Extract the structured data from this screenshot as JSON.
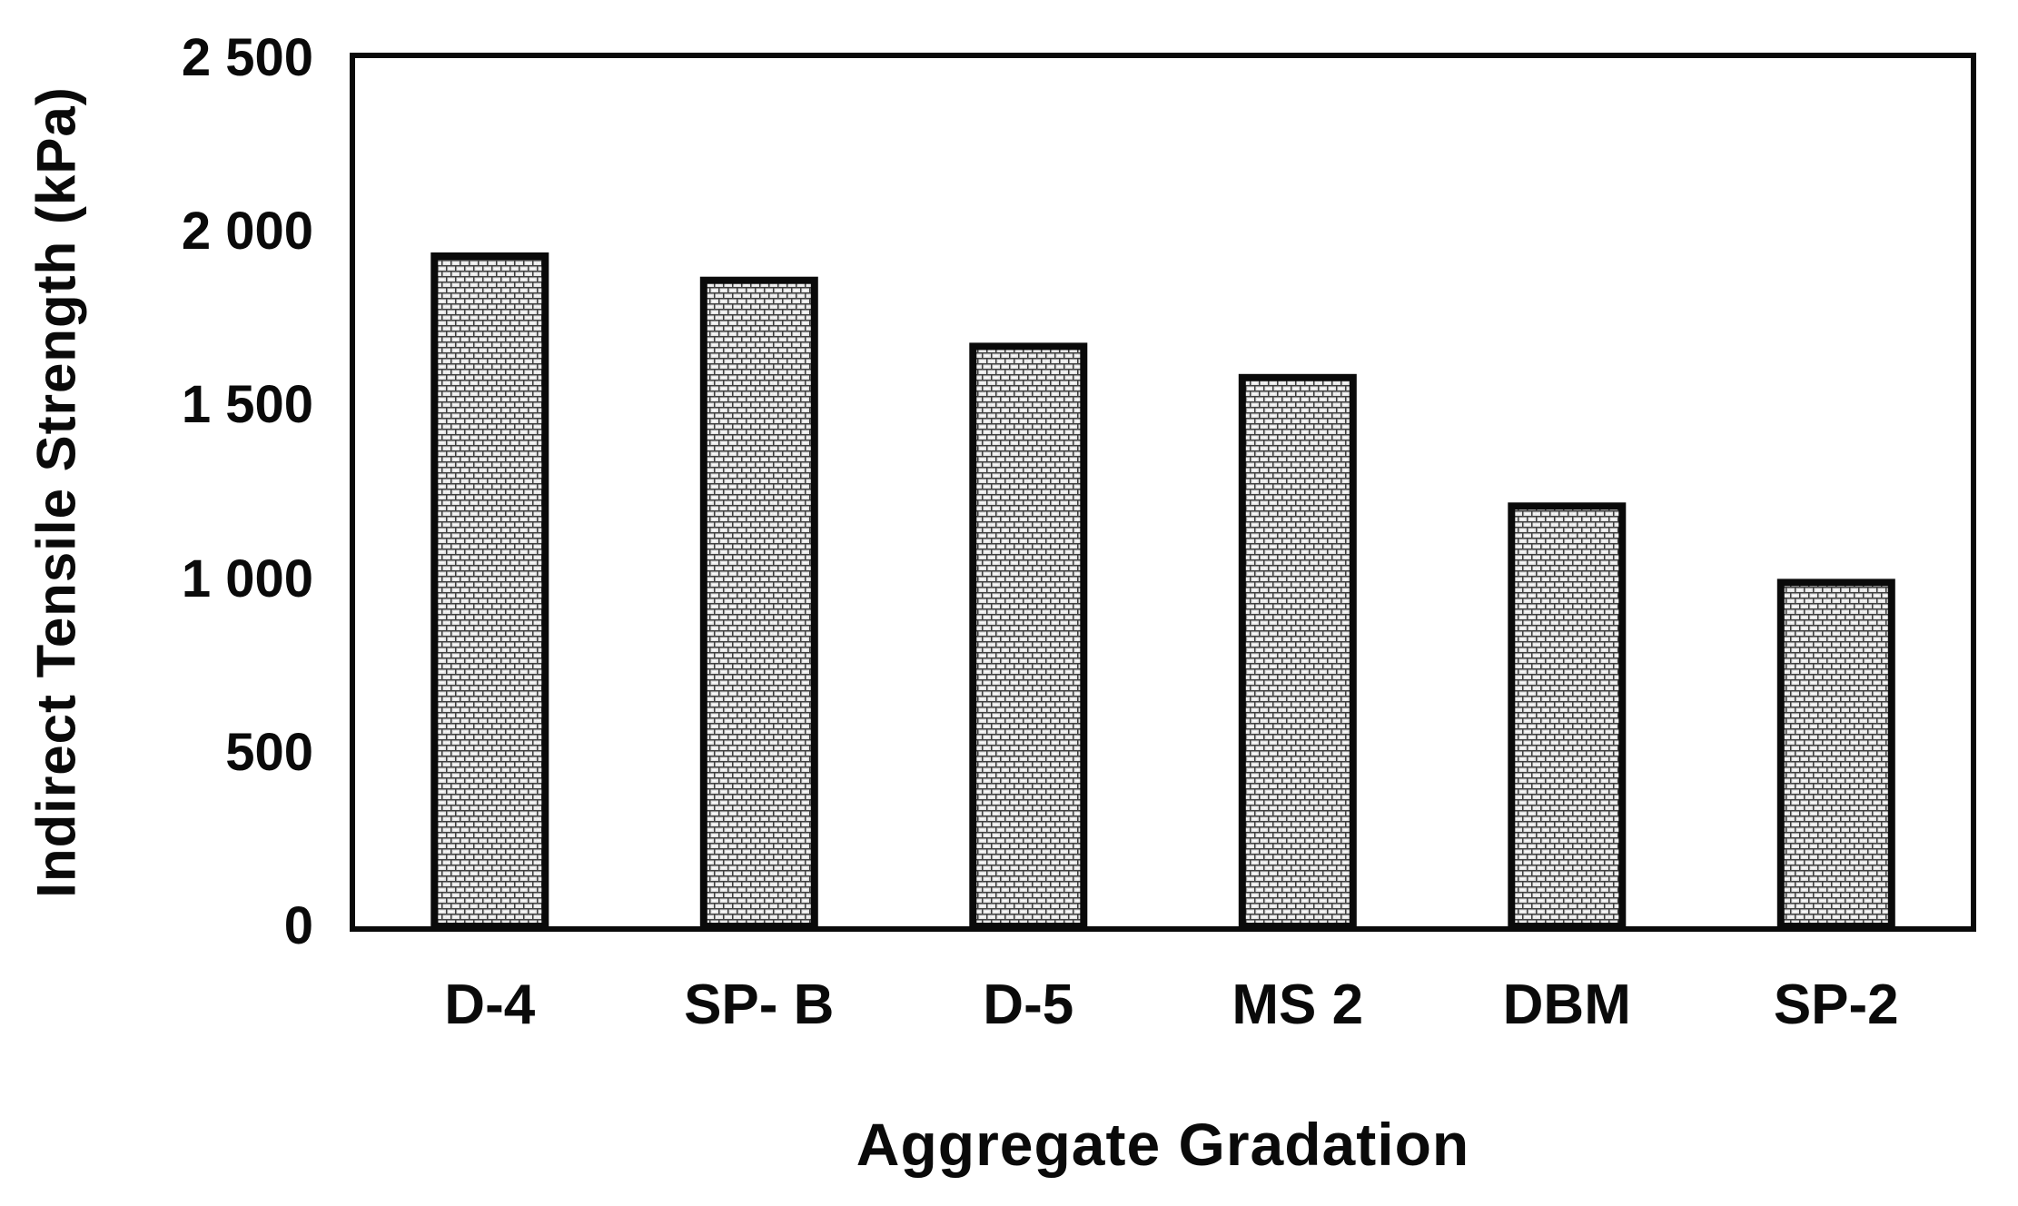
{
  "chart_data": {
    "type": "bar",
    "title": "",
    "categories": [
      "D-4",
      "SP- B",
      "D-5",
      "MS 2",
      "DBM",
      "SP-2"
    ],
    "values": [
      1930,
      1860,
      1670,
      1580,
      1210,
      990
    ],
    "xlabel": "Aggregate Gradation",
    "ylabel": "Indirect Tensile Strength (kPa)",
    "ylim": [
      0,
      2500
    ],
    "ytick_step": 500,
    "ytick_labels": [
      "0",
      "500",
      "1 000",
      "1 500",
      "2 000",
      "2 500"
    ],
    "grid": false,
    "legend": null,
    "bar_pattern": "brick-texture",
    "colors": {
      "bar_brick": "#e4e4e4",
      "bar_highlight": "#fafafa",
      "bar_mortar": "#3f3f3f",
      "bar_border": "#0a0a0a",
      "axis_frame": "#0a0a0a",
      "text": "#0a0a0a",
      "background": "#ffffff"
    }
  }
}
